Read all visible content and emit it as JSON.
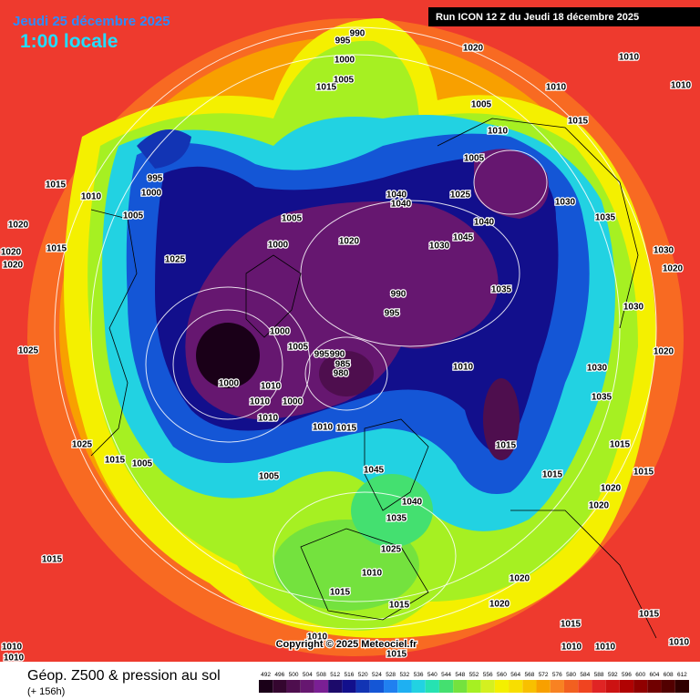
{
  "header": {
    "date": "Jeudi 25 décembre 2025",
    "time": "1:00 locale",
    "run": "Run ICON 12 Z du Jeudi 18 décembre 2025"
  },
  "footer": {
    "title": "Géop. Z500 & pression au sol",
    "lead": "(+ 156h)",
    "copyright": "Copyright © 2025 Meteociel.fr"
  },
  "legend": {
    "levels": [
      492,
      496,
      500,
      504,
      508,
      512,
      516,
      520,
      524,
      528,
      532,
      536,
      540,
      544,
      548,
      552,
      556,
      560,
      564,
      568,
      572,
      576,
      580,
      584,
      588,
      592,
      596,
      600,
      604,
      608,
      612
    ],
    "colors": [
      "#1a0018",
      "#34062f",
      "#4e0e4e",
      "#661770",
      "#7a1f94",
      "#1c0a6a",
      "#120f8c",
      "#1234b4",
      "#1456d6",
      "#2080f0",
      "#1eb0f2",
      "#22d2e2",
      "#26e2b2",
      "#44e070",
      "#74e23e",
      "#a6f022",
      "#d4f020",
      "#f4f000",
      "#f8de00",
      "#f8c000",
      "#f8a000",
      "#f88222",
      "#f26020",
      "#f04420",
      "#e02424",
      "#cc1212",
      "#b00202",
      "#900000",
      "#700000",
      "#520000",
      "#300000"
    ]
  },
  "pressure_labels": [
    995,
    990,
    1000,
    1005,
    1015,
    1020,
    1010,
    1010,
    1005,
    1010,
    1015,
    1005,
    995,
    1000,
    1015,
    1010,
    1020,
    1015,
    1020,
    1020,
    1025,
    1005,
    1000,
    1005,
    1020,
    1040,
    1040,
    1025,
    1030,
    1045,
    1040,
    1030,
    1035,
    1035,
    990,
    995,
    1000,
    1005,
    995,
    990,
    985,
    980,
    1000,
    1010,
    1010,
    1010,
    1000,
    1010,
    1015,
    1010,
    1015,
    1025,
    1015,
    1005,
    1005,
    1045,
    1040,
    1035,
    1025,
    1010,
    1015,
    1015,
    1010,
    1015,
    1020,
    1020,
    1020,
    1015,
    1015,
    1015,
    1030,
    1020,
    1020,
    1020,
    1015,
    1010,
    1010,
    1010,
    1010,
    1010,
    1015,
    1015,
    1010,
    1025,
    1030,
    1030,
    1035
  ]
}
